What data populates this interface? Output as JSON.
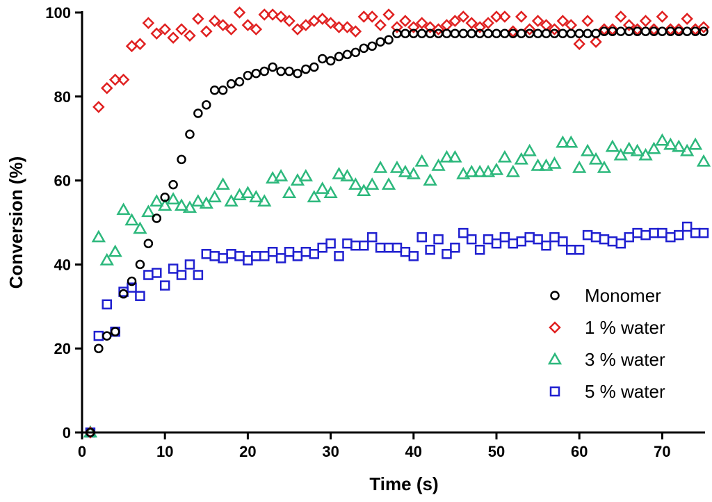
{
  "chart_data": {
    "type": "scatter",
    "title": "",
    "xlabel": "Time (s)",
    "ylabel": "Conversion (%)",
    "xlim": [
      0,
      75
    ],
    "ylim": [
      0,
      100
    ],
    "xticks": [
      0,
      10,
      20,
      30,
      40,
      50,
      60,
      70
    ],
    "yticks": [
      0,
      20,
      40,
      60,
      80,
      100
    ],
    "grid": false,
    "legend_position": "right-center",
    "series": [
      {
        "name": "Monomer",
        "marker": "circle",
        "color": "#000000",
        "x": [
          1,
          2,
          3,
          4,
          5,
          6,
          7,
          8,
          9,
          10,
          11,
          12,
          13,
          14,
          15,
          16,
          17,
          18,
          19,
          20,
          21,
          22,
          23,
          24,
          25,
          26,
          27,
          28,
          29,
          30,
          31,
          32,
          33,
          34,
          35,
          36,
          37,
          38,
          39,
          40,
          41,
          42,
          43,
          44,
          45,
          46,
          47,
          48,
          49,
          50,
          51,
          52,
          53,
          54,
          55,
          56,
          57,
          58,
          59,
          60,
          61,
          62,
          63,
          64,
          65,
          66,
          67,
          68,
          69,
          70,
          71,
          72,
          73,
          74,
          75
        ],
        "y": [
          0,
          20,
          23,
          24,
          33,
          36,
          40,
          45,
          51,
          56,
          59,
          65,
          71,
          76,
          78,
          81.5,
          81.5,
          83,
          83.5,
          85,
          85.5,
          86,
          87,
          86,
          86,
          85.5,
          86.5,
          87,
          89,
          88.5,
          89.5,
          90,
          90.5,
          91.5,
          92,
          93,
          93.5,
          95,
          95,
          95,
          95,
          95,
          95,
          95,
          95,
          95,
          95,
          95,
          95,
          95,
          95,
          95,
          95,
          95,
          95,
          95,
          95,
          95,
          95,
          95,
          95,
          95,
          95.5,
          95.5,
          95.5,
          95.5,
          95.5,
          95.5,
          95.5,
          95.5,
          95.5,
          95.5,
          95.5,
          95.5,
          95.5
        ]
      },
      {
        "name": "1 % water",
        "marker": "diamond",
        "color": "#e02020",
        "x": [
          1,
          2,
          3,
          4,
          5,
          6,
          7,
          8,
          9,
          10,
          11,
          12,
          13,
          14,
          15,
          16,
          17,
          18,
          19,
          20,
          21,
          22,
          23,
          24,
          25,
          26,
          27,
          28,
          29,
          30,
          31,
          32,
          33,
          34,
          35,
          36,
          37,
          38,
          39,
          40,
          41,
          42,
          43,
          44,
          45,
          46,
          47,
          48,
          49,
          50,
          51,
          52,
          53,
          54,
          55,
          56,
          57,
          58,
          59,
          60,
          61,
          62,
          63,
          64,
          65,
          66,
          67,
          68,
          69,
          70,
          71,
          72,
          73,
          74,
          75
        ],
        "y": [
          0,
          77.5,
          82,
          84,
          84,
          92,
          92.5,
          97.5,
          95,
          96,
          94,
          96,
          94.5,
          98.5,
          95.5,
          98,
          97,
          96,
          100,
          97,
          96,
          99.5,
          99.5,
          99,
          98,
          96,
          97,
          98,
          98.5,
          97.5,
          96.5,
          96.5,
          95.5,
          99,
          99,
          97,
          99.5,
          96.5,
          98,
          96.5,
          97.5,
          96.5,
          96,
          97,
          98,
          99,
          97.5,
          96.5,
          97.5,
          99,
          99,
          95.5,
          99,
          96,
          98,
          97,
          96,
          98,
          97,
          92.5,
          98,
          93,
          96,
          96,
          99,
          97,
          96,
          98,
          96,
          99,
          96,
          96,
          98.5,
          96,
          96.5
        ]
      },
      {
        "name": "3 % water",
        "marker": "triangle",
        "color": "#2cb87c",
        "x": [
          1,
          2,
          3,
          4,
          5,
          6,
          7,
          8,
          9,
          10,
          11,
          12,
          13,
          14,
          15,
          16,
          17,
          18,
          19,
          20,
          21,
          22,
          23,
          24,
          25,
          26,
          27,
          28,
          29,
          30,
          31,
          32,
          33,
          34,
          35,
          36,
          37,
          38,
          39,
          40,
          41,
          42,
          43,
          44,
          45,
          46,
          47,
          48,
          49,
          50,
          51,
          52,
          53,
          54,
          55,
          56,
          57,
          58,
          59,
          60,
          61,
          62,
          63,
          64,
          65,
          66,
          67,
          68,
          69,
          70,
          71,
          72,
          73,
          74,
          75
        ],
        "y": [
          0,
          46.5,
          41,
          43,
          53,
          50.5,
          48.5,
          52.5,
          55,
          54,
          55.5,
          54,
          53.5,
          55,
          54.5,
          56,
          59,
          55,
          56.5,
          57,
          56,
          55,
          60.5,
          61,
          57,
          60,
          61,
          56,
          58,
          57,
          61.5,
          61,
          59,
          57.5,
          59,
          63,
          59,
          63,
          62,
          61.5,
          64.5,
          60,
          63.5,
          65.5,
          65.5,
          61.5,
          62,
          62,
          62,
          62.5,
          65.5,
          62,
          65,
          67,
          63.5,
          63.5,
          64,
          69,
          69,
          63,
          67,
          65,
          63,
          68,
          66,
          67.5,
          67,
          66,
          67.5,
          69.5,
          68.5,
          68,
          67,
          68.5,
          64.5
        ]
      },
      {
        "name": "5 % water",
        "marker": "square",
        "color": "#2020d0",
        "x": [
          1,
          2,
          3,
          4,
          5,
          6,
          7,
          8,
          9,
          10,
          11,
          12,
          13,
          14,
          15,
          16,
          17,
          18,
          19,
          20,
          21,
          22,
          23,
          24,
          25,
          26,
          27,
          28,
          29,
          30,
          31,
          32,
          33,
          34,
          35,
          36,
          37,
          38,
          39,
          40,
          41,
          42,
          43,
          44,
          45,
          46,
          47,
          48,
          49,
          50,
          51,
          52,
          53,
          54,
          55,
          56,
          57,
          58,
          59,
          60,
          61,
          62,
          63,
          64,
          65,
          66,
          67,
          68,
          69,
          70,
          71,
          72,
          73,
          74,
          75
        ],
        "y": [
          0,
          23,
          30.5,
          24,
          33.5,
          34.5,
          32.5,
          37.5,
          38,
          35,
          39,
          37.5,
          40,
          37.5,
          42.5,
          42,
          41.5,
          42.5,
          42,
          41,
          42,
          42,
          43,
          41.5,
          43,
          42,
          43,
          42.5,
          44,
          45,
          42,
          45,
          44.5,
          44.5,
          46.5,
          44,
          44,
          44,
          43,
          42,
          46.5,
          43.5,
          46,
          42.5,
          44,
          47.5,
          46,
          43.5,
          46,
          45,
          46.5,
          45,
          45.5,
          46.5,
          46,
          44.5,
          46.5,
          45.5,
          43.5,
          43.5,
          47,
          46.5,
          46,
          45.5,
          45,
          46.5,
          47.5,
          47,
          47.5,
          47.5,
          46.5,
          47,
          49,
          47.5,
          47.5
        ]
      }
    ]
  }
}
